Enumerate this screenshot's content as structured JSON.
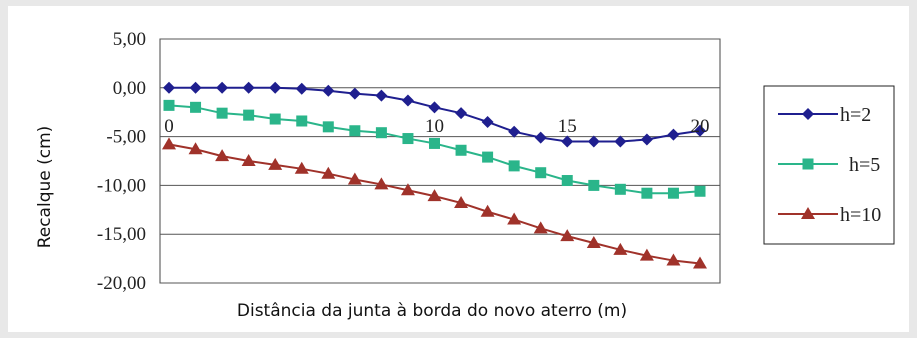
{
  "chart_data": {
    "type": "line",
    "xlabel": "Distância da junta à borda do novo aterro (m)",
    "ylabel": "Recalque (cm)",
    "xlim": [
      0,
      20
    ],
    "ylim": [
      -20,
      5
    ],
    "x_ticks": [
      "0",
      "10",
      "15",
      "20"
    ],
    "y_ticks": [
      "5,00",
      "0,00",
      "-5,00",
      "-10,00",
      "-15,00",
      "-20,00"
    ],
    "grid": "horizontal",
    "legend_position": "right",
    "x": [
      0,
      1,
      2,
      3,
      4,
      5,
      6,
      7,
      8,
      9,
      10,
      11,
      12,
      13,
      14,
      15,
      16,
      17,
      18,
      19,
      20
    ],
    "series": [
      {
        "name": "h=2",
        "color": "#1f1f8f",
        "marker": "diamond",
        "values": [
          0.0,
          0.0,
          0.0,
          0.0,
          0.0,
          -0.1,
          -0.3,
          -0.6,
          -0.8,
          -1.3,
          -2.0,
          -2.6,
          -3.5,
          -4.5,
          -5.1,
          -5.5,
          -5.5,
          -5.5,
          -5.3,
          -4.8,
          -4.4
        ]
      },
      {
        "name": "h=5",
        "color": "#2ab58a",
        "marker": "square",
        "values": [
          -1.8,
          -2.0,
          -2.6,
          -2.8,
          -3.2,
          -3.4,
          -4.0,
          -4.4,
          -4.6,
          -5.2,
          -5.7,
          -6.4,
          -7.1,
          -8.0,
          -8.7,
          -9.5,
          -10.0,
          -10.4,
          -10.8,
          -10.8,
          -10.6
        ]
      },
      {
        "name": "h=10",
        "color": "#a0322a",
        "marker": "triangle",
        "values": [
          -5.8,
          -6.3,
          -7.0,
          -7.5,
          -7.9,
          -8.3,
          -8.8,
          -9.4,
          -9.9,
          -10.5,
          -11.1,
          -11.8,
          -12.7,
          -13.5,
          -14.4,
          -15.2,
          -15.9,
          -16.6,
          -17.2,
          -17.7,
          -18.0
        ]
      }
    ]
  }
}
